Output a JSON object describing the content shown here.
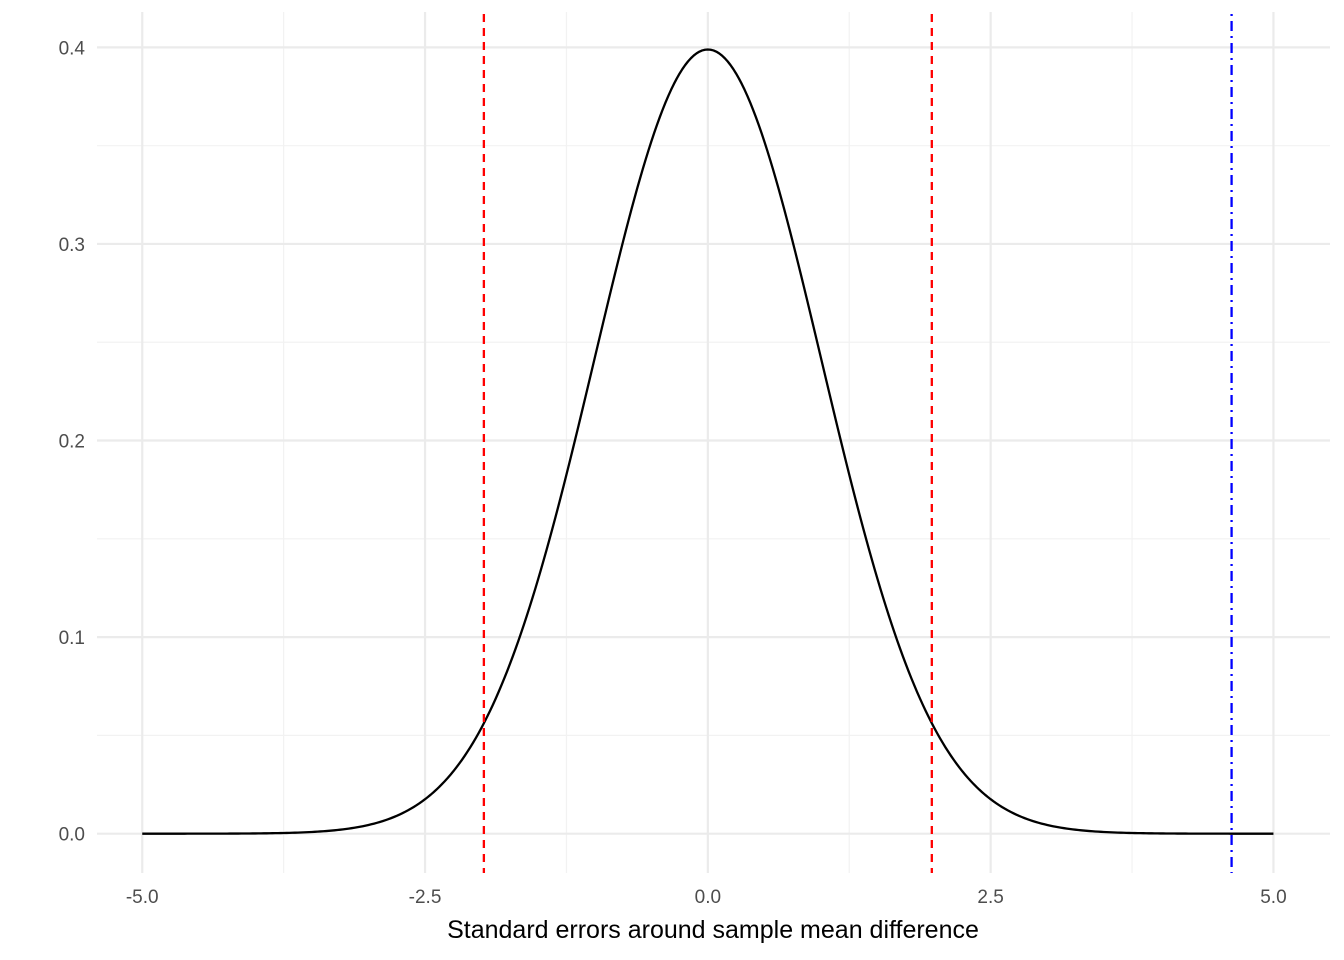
{
  "chart_data": {
    "type": "line",
    "title": "",
    "xlabel": "Standard errors around sample mean difference",
    "ylabel": "",
    "xlim": [
      -5.4,
      5.5
    ],
    "ylim": [
      -0.02,
      0.418
    ],
    "grid": true,
    "x_ticks": [
      -5.0,
      -2.5,
      0.0,
      2.5,
      5.0
    ],
    "x_tick_labels": [
      "-5.0",
      "-2.5",
      "0.0",
      "2.5",
      "5.0"
    ],
    "y_ticks": [
      0.0,
      0.1,
      0.2,
      0.3,
      0.4
    ],
    "y_tick_labels": [
      "0.0",
      "0.1",
      "0.2",
      "0.3",
      "0.4"
    ],
    "x_minor": [
      -3.75,
      -1.25,
      1.25,
      3.75
    ],
    "y_minor": [
      0.05,
      0.15,
      0.25,
      0.35
    ],
    "series": [
      {
        "distribution": "standard normal density",
        "x_range": [
          -5,
          5
        ],
        "color": "#000000",
        "style": "solid"
      }
    ],
    "reference_lines": [
      {
        "axis": "x",
        "value": -1.98,
        "color": "#ff0000",
        "style": "dashed"
      },
      {
        "axis": "x",
        "value": 1.98,
        "color": "#ff0000",
        "style": "dashed"
      },
      {
        "axis": "x",
        "value": 4.63,
        "color": "#0000ff",
        "style": "dotdash"
      }
    ]
  }
}
